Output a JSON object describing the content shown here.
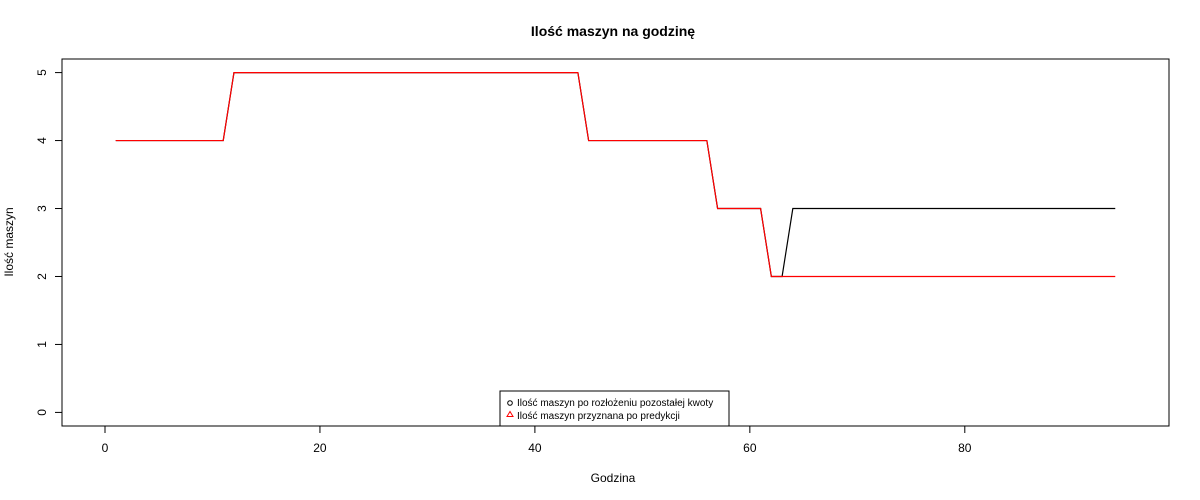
{
  "chart_data": {
    "type": "line",
    "title": "Ilość maszyn na godzinę",
    "xlabel": "Godzina",
    "ylabel": "Ilość maszyn",
    "xlim": [
      -4,
      99
    ],
    "ylim": [
      -0.2,
      5.2
    ],
    "xticks": [
      0,
      20,
      40,
      60,
      80
    ],
    "yticks": [
      0,
      1,
      2,
      3,
      4,
      5
    ],
    "grid": false,
    "legend_position": "bottom-center",
    "series": [
      {
        "name": "Ilość maszyn po rozłożeniu pozostałej kwoty",
        "color": "#000000",
        "legend_marker": "circle",
        "x": [
          1,
          11,
          12,
          44,
          45,
          56,
          57,
          61,
          62,
          63,
          64,
          94
        ],
        "y": [
          4,
          4,
          5,
          5,
          4,
          4,
          3,
          3,
          2,
          2,
          3,
          3
        ]
      },
      {
        "name": "Ilość maszyn przyznana po predykcji",
        "color": "#ff0000",
        "legend_marker": "triangle",
        "x": [
          1,
          11,
          12,
          44,
          45,
          56,
          57,
          61,
          62,
          94
        ],
        "y": [
          4,
          4,
          5,
          5,
          4,
          4,
          3,
          3,
          2,
          2
        ]
      }
    ]
  }
}
